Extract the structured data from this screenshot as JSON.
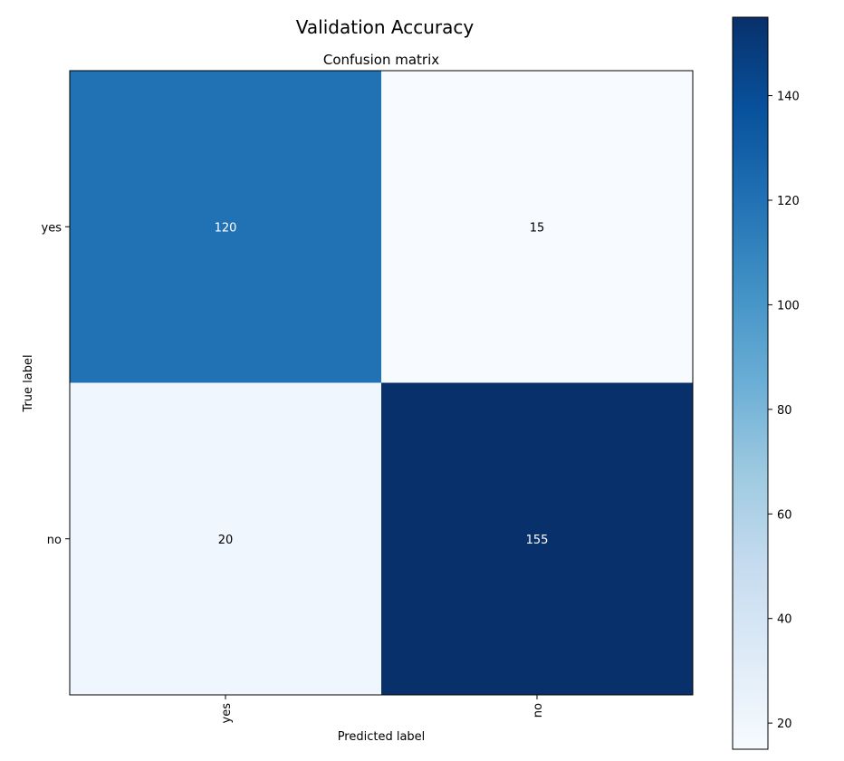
{
  "figure": {
    "suptitle": "Validation Accuracy"
  },
  "chart_data": {
    "type": "heatmap",
    "title": "Confusion matrix",
    "xlabel": "Predicted label",
    "ylabel": "True label",
    "x_categories": [
      "yes",
      "no"
    ],
    "y_categories": [
      "yes",
      "no"
    ],
    "values": [
      [
        120,
        15
      ],
      [
        20,
        155
      ]
    ],
    "colormap": "Blues",
    "color_range": [
      15,
      155
    ],
    "colorbar_ticks": [
      20,
      40,
      60,
      80,
      100,
      120,
      140
    ],
    "cell_text_colors": [
      [
        "#ffffff",
        "#000000"
      ],
      [
        "#000000",
        "#ffffff"
      ]
    ],
    "x_tick_rotation": "vertical",
    "grid": false
  }
}
